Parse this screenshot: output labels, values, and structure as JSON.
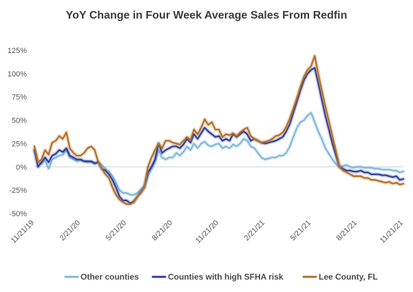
{
  "chart_data": {
    "type": "line",
    "title": "YoY Change in Four Week Average Sales From Redfin",
    "xlabel": "",
    "ylabel": "",
    "ylim": [
      -50,
      125
    ],
    "yticks": [
      -50,
      -25,
      0,
      25,
      50,
      75,
      100,
      125
    ],
    "ytick_labels": [
      "-50%",
      "-25%",
      "0%",
      "25%",
      "50%",
      "75%",
      "100%",
      "125%"
    ],
    "x_range": [
      0,
      104
    ],
    "xticks": [
      0,
      13,
      26,
      39,
      52,
      65,
      78,
      91,
      104
    ],
    "xtick_labels": [
      "11/21/19",
      "2/21/20",
      "5/21/20",
      "8/21/20",
      "11/21/20",
      "2/21/21",
      "5/21/21",
      "8/21/21",
      "11/21/21"
    ],
    "series": [
      {
        "name": "Other counties",
        "color": "#7fb8dc",
        "points": [
          [
            0,
            18
          ],
          [
            1,
            5
          ],
          [
            2,
            3
          ],
          [
            3,
            7
          ],
          [
            4,
            -2
          ],
          [
            5,
            8
          ],
          [
            6,
            10
          ],
          [
            7,
            12
          ],
          [
            8,
            13
          ],
          [
            9,
            18
          ],
          [
            10,
            10
          ],
          [
            11,
            8
          ],
          [
            12,
            6
          ],
          [
            13,
            7
          ],
          [
            14,
            6
          ],
          [
            15,
            5
          ],
          [
            16,
            5
          ],
          [
            17,
            3
          ],
          [
            18,
            5
          ],
          [
            19,
            2
          ],
          [
            20,
            -2
          ],
          [
            21,
            -5
          ],
          [
            22,
            -10
          ],
          [
            23,
            -17
          ],
          [
            24,
            -25
          ],
          [
            25,
            -28
          ],
          [
            26,
            -28
          ],
          [
            27,
            -30
          ],
          [
            28,
            -30
          ],
          [
            29,
            -28
          ],
          [
            30,
            -24
          ],
          [
            31,
            -20
          ],
          [
            32,
            -10
          ],
          [
            33,
            -2
          ],
          [
            34,
            5
          ],
          [
            35,
            18
          ],
          [
            36,
            10
          ],
          [
            37,
            8
          ],
          [
            38,
            10
          ],
          [
            39,
            10
          ],
          [
            40,
            15
          ],
          [
            41,
            12
          ],
          [
            42,
            16
          ],
          [
            43,
            22
          ],
          [
            44,
            18
          ],
          [
            45,
            25
          ],
          [
            46,
            20
          ],
          [
            47,
            25
          ],
          [
            48,
            27
          ],
          [
            49,
            23
          ],
          [
            50,
            22
          ],
          [
            51,
            24
          ],
          [
            52,
            25
          ],
          [
            53,
            20
          ],
          [
            54,
            22
          ],
          [
            55,
            20
          ],
          [
            56,
            24
          ],
          [
            57,
            22
          ],
          [
            58,
            25
          ],
          [
            59,
            30
          ],
          [
            60,
            28
          ],
          [
            61,
            22
          ],
          [
            62,
            20
          ],
          [
            63,
            15
          ],
          [
            64,
            10
          ],
          [
            65,
            8
          ],
          [
            66,
            9
          ],
          [
            67,
            10
          ],
          [
            68,
            10
          ],
          [
            69,
            12
          ],
          [
            70,
            12
          ],
          [
            71,
            15
          ],
          [
            72,
            22
          ],
          [
            73,
            32
          ],
          [
            74,
            42
          ],
          [
            75,
            48
          ],
          [
            76,
            50
          ],
          [
            77,
            55
          ],
          [
            78,
            58
          ],
          [
            79,
            48
          ],
          [
            80,
            38
          ],
          [
            81,
            30
          ],
          [
            82,
            20
          ],
          [
            83,
            14
          ],
          [
            84,
            8
          ],
          [
            85,
            3
          ],
          [
            86,
            0
          ],
          [
            87,
            1
          ],
          [
            88,
            2
          ],
          [
            89,
            0
          ],
          [
            90,
            -1
          ],
          [
            91,
            0
          ],
          [
            92,
            0
          ],
          [
            93,
            -1
          ],
          [
            94,
            -1
          ],
          [
            95,
            -1
          ],
          [
            96,
            -2
          ],
          [
            97,
            -2
          ],
          [
            98,
            -3
          ],
          [
            99,
            -3
          ],
          [
            100,
            -3
          ],
          [
            101,
            -4
          ],
          [
            102,
            -4
          ],
          [
            103,
            -6
          ],
          [
            104,
            -5
          ]
        ]
      },
      {
        "name": "Counties with high SFHA risk",
        "color": "#2d3e9e",
        "points": [
          [
            0,
            18
          ],
          [
            1,
            0
          ],
          [
            2,
            5
          ],
          [
            3,
            10
          ],
          [
            4,
            5
          ],
          [
            5,
            12
          ],
          [
            6,
            14
          ],
          [
            7,
            18
          ],
          [
            8,
            16
          ],
          [
            9,
            20
          ],
          [
            10,
            12
          ],
          [
            11,
            10
          ],
          [
            12,
            8
          ],
          [
            13,
            8
          ],
          [
            14,
            6
          ],
          [
            15,
            6
          ],
          [
            16,
            6
          ],
          [
            17,
            4
          ],
          [
            18,
            5
          ],
          [
            19,
            -2
          ],
          [
            20,
            -4
          ],
          [
            21,
            -8
          ],
          [
            22,
            -14
          ],
          [
            23,
            -22
          ],
          [
            24,
            -32
          ],
          [
            25,
            -36
          ],
          [
            26,
            -36
          ],
          [
            27,
            -39
          ],
          [
            28,
            -37
          ],
          [
            29,
            -32
          ],
          [
            30,
            -27
          ],
          [
            31,
            -22
          ],
          [
            32,
            -6
          ],
          [
            33,
            0
          ],
          [
            34,
            8
          ],
          [
            35,
            25
          ],
          [
            36,
            15
          ],
          [
            37,
            18
          ],
          [
            38,
            20
          ],
          [
            39,
            22
          ],
          [
            40,
            22
          ],
          [
            41,
            20
          ],
          [
            42,
            24
          ],
          [
            43,
            30
          ],
          [
            44,
            26
          ],
          [
            45,
            35
          ],
          [
            46,
            30
          ],
          [
            47,
            36
          ],
          [
            48,
            42
          ],
          [
            49,
            38
          ],
          [
            50,
            35
          ],
          [
            51,
            32
          ],
          [
            52,
            33
          ],
          [
            53,
            28
          ],
          [
            54,
            30
          ],
          [
            55,
            28
          ],
          [
            56,
            35
          ],
          [
            57,
            32
          ],
          [
            58,
            35
          ],
          [
            59,
            38
          ],
          [
            60,
            35
          ],
          [
            61,
            28
          ],
          [
            62,
            30
          ],
          [
            63,
            28
          ],
          [
            64,
            26
          ],
          [
            65,
            25
          ],
          [
            66,
            26
          ],
          [
            67,
            27
          ],
          [
            68,
            28
          ],
          [
            69,
            30
          ],
          [
            70,
            32
          ],
          [
            71,
            38
          ],
          [
            72,
            46
          ],
          [
            73,
            58
          ],
          [
            74,
            70
          ],
          [
            75,
            82
          ],
          [
            76,
            93
          ],
          [
            77,
            100
          ],
          [
            78,
            104
          ],
          [
            79,
            106
          ],
          [
            80,
            90
          ],
          [
            81,
            72
          ],
          [
            82,
            55
          ],
          [
            83,
            40
          ],
          [
            84,
            25
          ],
          [
            85,
            12
          ],
          [
            86,
            0
          ],
          [
            87,
            -2
          ],
          [
            88,
            -4
          ],
          [
            89,
            -4
          ],
          [
            90,
            -5
          ],
          [
            91,
            -5
          ],
          [
            92,
            -4
          ],
          [
            93,
            -6
          ],
          [
            94,
            -6
          ],
          [
            95,
            -8
          ],
          [
            96,
            -8
          ],
          [
            97,
            -8
          ],
          [
            98,
            -9
          ],
          [
            99,
            -9
          ],
          [
            100,
            -10
          ],
          [
            101,
            -11
          ],
          [
            102,
            -10
          ],
          [
            103,
            -14
          ],
          [
            104,
            -13
          ]
        ]
      },
      {
        "name": "Lee County, FL",
        "color": "#b36f25",
        "points": [
          [
            0,
            22
          ],
          [
            1,
            5
          ],
          [
            2,
            8
          ],
          [
            3,
            18
          ],
          [
            4,
            13
          ],
          [
            5,
            26
          ],
          [
            6,
            28
          ],
          [
            7,
            33
          ],
          [
            8,
            30
          ],
          [
            9,
            37
          ],
          [
            10,
            20
          ],
          [
            11,
            15
          ],
          [
            12,
            12
          ],
          [
            13,
            12
          ],
          [
            14,
            15
          ],
          [
            15,
            20
          ],
          [
            16,
            22
          ],
          [
            17,
            18
          ],
          [
            18,
            5
          ],
          [
            19,
            -2
          ],
          [
            20,
            -8
          ],
          [
            21,
            -12
          ],
          [
            22,
            -22
          ],
          [
            23,
            -30
          ],
          [
            24,
            -35
          ],
          [
            25,
            -38
          ],
          [
            26,
            -40
          ],
          [
            27,
            -40
          ],
          [
            28,
            -38
          ],
          [
            29,
            -32
          ],
          [
            30,
            -28
          ],
          [
            31,
            -22
          ],
          [
            32,
            0
          ],
          [
            33,
            10
          ],
          [
            34,
            18
          ],
          [
            35,
            25
          ],
          [
            36,
            20
          ],
          [
            37,
            28
          ],
          [
            38,
            28
          ],
          [
            39,
            26
          ],
          [
            40,
            25
          ],
          [
            41,
            24
          ],
          [
            42,
            28
          ],
          [
            43,
            32
          ],
          [
            44,
            29
          ],
          [
            45,
            40
          ],
          [
            46,
            35
          ],
          [
            47,
            42
          ],
          [
            48,
            51
          ],
          [
            49,
            45
          ],
          [
            50,
            48
          ],
          [
            51,
            40
          ],
          [
            52,
            40
          ],
          [
            53,
            32
          ],
          [
            54,
            35
          ],
          [
            55,
            34
          ],
          [
            56,
            36
          ],
          [
            57,
            33
          ],
          [
            58,
            37
          ],
          [
            59,
            40
          ],
          [
            60,
            42
          ],
          [
            61,
            33
          ],
          [
            62,
            30
          ],
          [
            63,
            28
          ],
          [
            64,
            26
          ],
          [
            65,
            27
          ],
          [
            66,
            28
          ],
          [
            67,
            30
          ],
          [
            68,
            33
          ],
          [
            69,
            34
          ],
          [
            70,
            37
          ],
          [
            71,
            43
          ],
          [
            72,
            52
          ],
          [
            73,
            63
          ],
          [
            74,
            74
          ],
          [
            75,
            86
          ],
          [
            76,
            97
          ],
          [
            77,
            104
          ],
          [
            78,
            108
          ],
          [
            79,
            119
          ],
          [
            80,
            100
          ],
          [
            81,
            82
          ],
          [
            82,
            65
          ],
          [
            83,
            49
          ],
          [
            84,
            33
          ],
          [
            85,
            17
          ],
          [
            86,
            0
          ],
          [
            87,
            -4
          ],
          [
            88,
            -6
          ],
          [
            89,
            -8
          ],
          [
            90,
            -10
          ],
          [
            91,
            -10
          ],
          [
            92,
            -10
          ],
          [
            93,
            -12
          ],
          [
            94,
            -12
          ],
          [
            95,
            -14
          ],
          [
            96,
            -14
          ],
          [
            97,
            -15
          ],
          [
            98,
            -16
          ],
          [
            99,
            -17
          ],
          [
            100,
            -16
          ],
          [
            101,
            -18
          ],
          [
            102,
            -17
          ],
          [
            103,
            -19
          ],
          [
            104,
            -18
          ]
        ]
      }
    ],
    "legend_position": "bottom",
    "grid": false
  }
}
